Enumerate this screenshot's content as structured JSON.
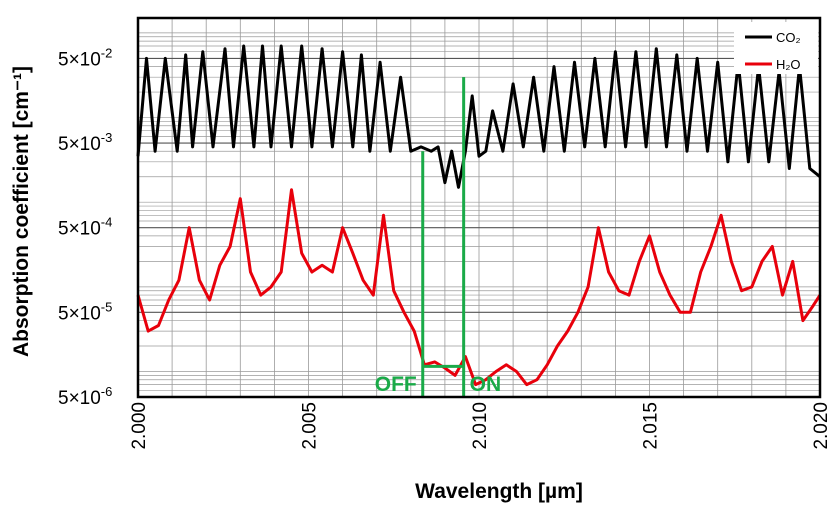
{
  "chart_data": {
    "type": "line",
    "title": "",
    "xlabel": "Wavelength [µm]",
    "ylabel": "Absorption coefficient [cm⁻¹]",
    "xlim": [
      2.0,
      2.02
    ],
    "ylim": [
      5e-06,
      0.15
    ],
    "y_scale": "log",
    "grid": true,
    "legend_placement": "top-right",
    "x_ticks": [
      {
        "value": 2.0,
        "label": "2.000"
      },
      {
        "value": 2.005,
        "label": "2.005"
      },
      {
        "value": 2.01,
        "label": "2.010"
      },
      {
        "value": 2.015,
        "label": "2.015"
      },
      {
        "value": 2.02,
        "label": "2.020"
      }
    ],
    "y_ticks": [
      {
        "value": 5e-06,
        "mant": "5×10",
        "exp": "-6"
      },
      {
        "value": 5e-05,
        "mant": "5×10",
        "exp": "-5"
      },
      {
        "value": 0.0005,
        "mant": "5×10",
        "exp": "-4"
      },
      {
        "value": 0.005,
        "mant": "5×10",
        "exp": "-3"
      },
      {
        "value": 0.05,
        "mant": "5×10",
        "exp": "-2"
      }
    ],
    "series": [
      {
        "name": "CO₂",
        "color": "#000000",
        "x": [
          2.0,
          2.00025,
          2.0005,
          2.0008,
          2.00115,
          2.0014,
          2.0016,
          2.0019,
          2.0022,
          2.00255,
          2.0028,
          2.0031,
          2.0034,
          2.00365,
          2.0039,
          2.0042,
          2.0045,
          2.0048,
          2.0051,
          2.0054,
          2.0057,
          2.006,
          2.0063,
          2.00655,
          2.0068,
          2.0071,
          2.0074,
          2.0077,
          2.008,
          2.0083,
          2.0086,
          2.0088,
          2.009,
          2.0092,
          2.0094,
          2.0096,
          2.0098,
          2.01,
          2.0102,
          2.0104,
          2.0107,
          2.011,
          2.0113,
          2.0116,
          2.0119,
          2.0122,
          2.0125,
          2.0128,
          2.0131,
          2.0134,
          2.0137,
          2.014,
          2.0143,
          2.0146,
          2.0149,
          2.0152,
          2.0155,
          2.0158,
          2.0161,
          2.0164,
          2.0167,
          2.017,
          2.0173,
          2.0176,
          2.0179,
          2.0182,
          2.0185,
          2.0188,
          2.0191,
          2.0194,
          2.0197,
          2.02
        ],
        "values": [
          0.0035,
          0.05,
          0.004,
          0.05,
          0.004,
          0.055,
          0.0045,
          0.06,
          0.0045,
          0.065,
          0.0045,
          0.07,
          0.0045,
          0.07,
          0.0045,
          0.07,
          0.0045,
          0.07,
          0.0045,
          0.065,
          0.0045,
          0.06,
          0.0045,
          0.055,
          0.004,
          0.045,
          0.004,
          0.03,
          0.004,
          0.0045,
          0.004,
          0.0045,
          0.0017,
          0.004,
          0.0015,
          0.004,
          0.018,
          0.0035,
          0.004,
          0.012,
          0.004,
          0.025,
          0.0045,
          0.03,
          0.004,
          0.04,
          0.004,
          0.045,
          0.0045,
          0.05,
          0.0045,
          0.06,
          0.0045,
          0.06,
          0.0045,
          0.065,
          0.0045,
          0.055,
          0.004,
          0.05,
          0.004,
          0.045,
          0.003,
          0.045,
          0.003,
          0.04,
          0.003,
          0.035,
          0.0025,
          0.04,
          0.0025,
          0.002
        ]
      },
      {
        "name": "H₂O",
        "color": "#e8000b",
        "x": [
          2.0,
          2.0003,
          2.0006,
          2.0009,
          2.0012,
          2.0015,
          2.0018,
          2.0021,
          2.0024,
          2.0027,
          2.003,
          2.0033,
          2.0036,
          2.0039,
          2.0042,
          2.0045,
          2.0048,
          2.0051,
          2.0054,
          2.0057,
          2.006,
          2.0063,
          2.0066,
          2.0069,
          2.0072,
          2.0075,
          2.0078,
          2.0081,
          2.0084,
          2.0087,
          2.009,
          2.0093,
          2.0096,
          2.0099,
          2.0102,
          2.0105,
          2.0108,
          2.0111,
          2.0114,
          2.0117,
          2.012,
          2.0123,
          2.0126,
          2.0129,
          2.0132,
          2.0135,
          2.0138,
          2.0141,
          2.0144,
          2.0147,
          2.015,
          2.0153,
          2.0156,
          2.0159,
          2.0162,
          2.0165,
          2.0168,
          2.0171,
          2.0174,
          2.0177,
          2.018,
          2.0183,
          2.0186,
          2.0189,
          2.0192,
          2.0195,
          2.0198,
          2.02
        ],
        "values": [
          8e-05,
          3e-05,
          3.5e-05,
          7e-05,
          0.00012,
          0.0005,
          0.00012,
          7e-05,
          0.00018,
          0.0003,
          0.0011,
          0.00015,
          8e-05,
          0.0001,
          0.00015,
          0.0014,
          0.00025,
          0.00015,
          0.00018,
          0.00015,
          0.0005,
          0.00025,
          0.00012,
          8e-05,
          0.0007,
          9e-05,
          5e-05,
          3e-05,
          1.2e-05,
          1.3e-05,
          1.1e-05,
          9e-06,
          1.5e-05,
          7e-06,
          8e-06,
          1e-05,
          1.2e-05,
          1e-05,
          7e-06,
          8e-06,
          1.2e-05,
          2e-05,
          3e-05,
          5e-05,
          0.0001,
          0.0005,
          0.00015,
          9e-05,
          8e-05,
          0.0002,
          0.0004,
          0.00015,
          8e-05,
          5e-05,
          5e-05,
          0.00015,
          0.0003,
          0.0007,
          0.0002,
          9e-05,
          0.0001,
          0.0002,
          0.0003,
          8e-05,
          0.0002,
          4e-05,
          6e-05,
          8e-05
        ]
      }
    ],
    "annotations": [
      {
        "label": "OFF",
        "x": 2.00835,
        "color": "#1aaa48"
      },
      {
        "label": "ON",
        "x": 2.00955,
        "color": "#1aaa48"
      }
    ],
    "marker_box": {
      "x_left": 2.00835,
      "x_right": 2.00955,
      "y_top": 0.004,
      "y_bottom": 1.25e-05,
      "level_y": 1.15e-05,
      "color": "#1aaa48"
    }
  }
}
